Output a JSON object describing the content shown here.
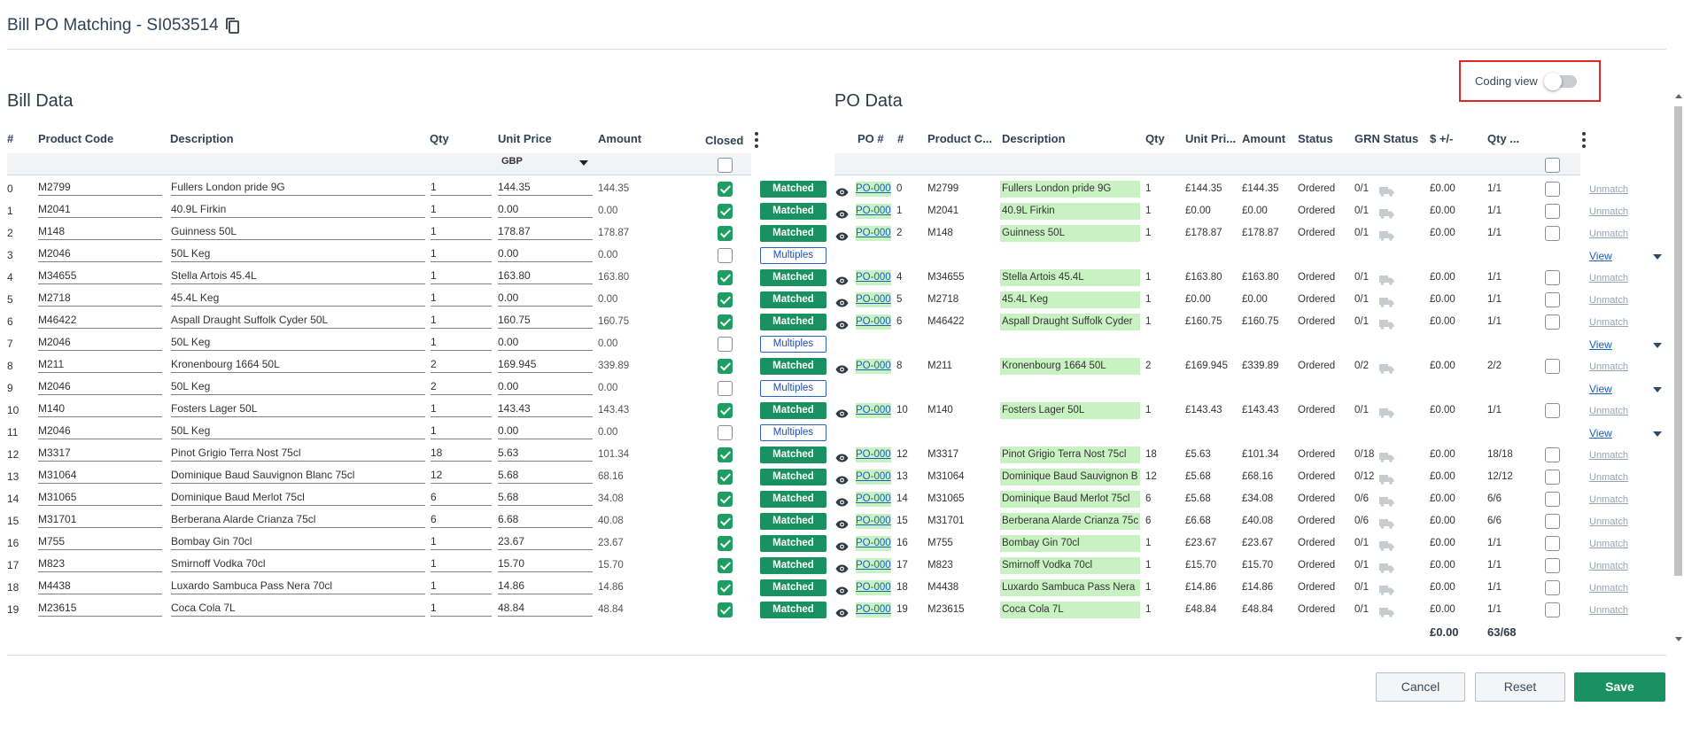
{
  "header": {
    "title": "Bill PO Matching - SI053514"
  },
  "coding_view": {
    "label": "Coding view",
    "on": false
  },
  "bill": {
    "title": "Bill Data",
    "columns": {
      "num": "#",
      "product_code": "Product Code",
      "description": "Description",
      "qty": "Qty",
      "unit_price": "Unit Price",
      "amount": "Amount",
      "closed": "Closed"
    },
    "currency": "GBP",
    "rows": [
      {
        "n": "0",
        "code": "M2799",
        "desc": "Fullers London pride 9G",
        "qty": "1",
        "price": "144.35",
        "amount": "144.35",
        "closed": true,
        "status": "Matched"
      },
      {
        "n": "1",
        "code": "M2041",
        "desc": "40.9L Firkin",
        "qty": "1",
        "price": "0.00",
        "amount": "0.00",
        "closed": true,
        "status": "Matched"
      },
      {
        "n": "2",
        "code": "M148",
        "desc": "Guinness  50L",
        "qty": "1",
        "price": "178.87",
        "amount": "178.87",
        "closed": true,
        "status": "Matched"
      },
      {
        "n": "3",
        "code": "M2046",
        "desc": "50L Keg",
        "qty": "1",
        "price": "0.00",
        "amount": "0.00",
        "closed": false,
        "status": "Multiples"
      },
      {
        "n": "4",
        "code": "M34655",
        "desc": "Stella Artois  45.4L",
        "qty": "1",
        "price": "163.80",
        "amount": "163.80",
        "closed": true,
        "status": "Matched"
      },
      {
        "n": "5",
        "code": "M2718",
        "desc": "45.4L Keg",
        "qty": "1",
        "price": "0.00",
        "amount": "0.00",
        "closed": true,
        "status": "Matched"
      },
      {
        "n": "6",
        "code": "M46422",
        "desc": "Aspall Draught Suffolk Cyder 50L",
        "qty": "1",
        "price": "160.75",
        "amount": "160.75",
        "closed": true,
        "status": "Matched"
      },
      {
        "n": "7",
        "code": "M2046",
        "desc": "50L Keg",
        "qty": "1",
        "price": "0.00",
        "amount": "0.00",
        "closed": false,
        "status": "Multiples"
      },
      {
        "n": "8",
        "code": "M211",
        "desc": "Kronenbourg 1664  50L",
        "qty": "2",
        "price": "169.945",
        "amount": "339.89",
        "closed": true,
        "status": "Matched"
      },
      {
        "n": "9",
        "code": "M2046",
        "desc": "50L Keg",
        "qty": "2",
        "price": "0.00",
        "amount": "0.00",
        "closed": false,
        "status": "Multiples"
      },
      {
        "n": "10",
        "code": "M140",
        "desc": "Fosters Lager  50L",
        "qty": "1",
        "price": "143.43",
        "amount": "143.43",
        "closed": true,
        "status": "Matched"
      },
      {
        "n": "11",
        "code": "M2046",
        "desc": "50L Keg",
        "qty": "1",
        "price": "0.00",
        "amount": "0.00",
        "closed": false,
        "status": "Multiples"
      },
      {
        "n": "12",
        "code": "M3317",
        "desc": "Pinot Grigio Terra Nost  75cl",
        "qty": "18",
        "price": "5.63",
        "amount": "101.34",
        "closed": true,
        "status": "Matched"
      },
      {
        "n": "13",
        "code": "M31064",
        "desc": "Dominique Baud Sauvignon Blanc  75cl",
        "qty": "12",
        "price": "5.68",
        "amount": "68.16",
        "closed": true,
        "status": "Matched"
      },
      {
        "n": "14",
        "code": "M31065",
        "desc": "Dominique Baud Merlot  75cl",
        "qty": "6",
        "price": "5.68",
        "amount": "34.08",
        "closed": true,
        "status": "Matched"
      },
      {
        "n": "15",
        "code": "M31701",
        "desc": "Berberana Alarde Crianza  75cl",
        "qty": "6",
        "price": "6.68",
        "amount": "40.08",
        "closed": true,
        "status": "Matched"
      },
      {
        "n": "16",
        "code": "M755",
        "desc": "Bombay Gin  70cl",
        "qty": "1",
        "price": "23.67",
        "amount": "23.67",
        "closed": true,
        "status": "Matched"
      },
      {
        "n": "17",
        "code": "M823",
        "desc": "Smirnoff Vodka  70cl",
        "qty": "1",
        "price": "15.70",
        "amount": "15.70",
        "closed": true,
        "status": "Matched"
      },
      {
        "n": "18",
        "code": "M4438",
        "desc": "Luxardo Sambuca Pass Nera  70cl",
        "qty": "1",
        "price": "14.86",
        "amount": "14.86",
        "closed": true,
        "status": "Matched"
      },
      {
        "n": "19",
        "code": "M23615",
        "desc": "Coca Cola  7L",
        "qty": "1",
        "price": "48.84",
        "amount": "48.84",
        "closed": true,
        "status": "Matched"
      }
    ]
  },
  "po": {
    "title": "PO Data",
    "columns": {
      "po_num": "PO #",
      "num": "#",
      "product_code": "Product C...",
      "description": "Description",
      "qty": "Qty",
      "unit_price": "Unit Pri...",
      "amount": "Amount",
      "status": "Status",
      "grn_status": "GRN Status",
      "diff": "$ +/-",
      "qty_short": "Qty ..."
    },
    "rows": [
      {
        "po": "PO-000",
        "n": "0",
        "code": "M2799",
        "desc": "Fullers London pride 9G",
        "qty": "1",
        "price": "£144.35",
        "amount": "£144.35",
        "status": "Ordered",
        "grn": "0/1",
        "diff": "£0.00",
        "qtyr": "1/1",
        "action": "Unmatch"
      },
      {
        "po": "PO-000",
        "n": "1",
        "code": "M2041",
        "desc": "40.9L Firkin",
        "qty": "1",
        "price": "£0.00",
        "amount": "£0.00",
        "status": "Ordered",
        "grn": "0/1",
        "diff": "£0.00",
        "qtyr": "1/1",
        "action": "Unmatch"
      },
      {
        "po": "PO-000",
        "n": "2",
        "code": "M148",
        "desc": "Guinness 50L",
        "qty": "1",
        "price": "£178.87",
        "amount": "£178.87",
        "status": "Ordered",
        "grn": "0/1",
        "diff": "£0.00",
        "qtyr": "1/1",
        "action": "Unmatch"
      },
      {
        "view": "View"
      },
      {
        "po": "PO-000",
        "n": "4",
        "code": "M34655",
        "desc": "Stella Artois 45.4L",
        "qty": "1",
        "price": "£163.80",
        "amount": "£163.80",
        "status": "Ordered",
        "grn": "0/1",
        "diff": "£0.00",
        "qtyr": "1/1",
        "action": "Unmatch"
      },
      {
        "po": "PO-000",
        "n": "5",
        "code": "M2718",
        "desc": "45.4L Keg",
        "qty": "1",
        "price": "£0.00",
        "amount": "£0.00",
        "status": "Ordered",
        "grn": "0/1",
        "diff": "£0.00",
        "qtyr": "1/1",
        "action": "Unmatch"
      },
      {
        "po": "PO-000",
        "n": "6",
        "code": "M46422",
        "desc": "Aspall Draught Suffolk Cyder",
        "qty": "1",
        "price": "£160.75",
        "amount": "£160.75",
        "status": "Ordered",
        "grn": "0/1",
        "diff": "£0.00",
        "qtyr": "1/1",
        "action": "Unmatch"
      },
      {
        "view": "View"
      },
      {
        "po": "PO-000",
        "n": "8",
        "code": "M211",
        "desc": "Kronenbourg 1664 50L",
        "qty": "2",
        "price": "£169.945",
        "amount": "£339.89",
        "status": "Ordered",
        "grn": "0/2",
        "diff": "£0.00",
        "qtyr": "2/2",
        "action": "Unmatch"
      },
      {
        "view": "View"
      },
      {
        "po": "PO-000",
        "n": "10",
        "code": "M140",
        "desc": "Fosters Lager 50L",
        "qty": "1",
        "price": "£143.43",
        "amount": "£143.43",
        "status": "Ordered",
        "grn": "0/1",
        "diff": "£0.00",
        "qtyr": "1/1",
        "action": "Unmatch"
      },
      {
        "view": "View"
      },
      {
        "po": "PO-000",
        "n": "12",
        "code": "M3317",
        "desc": "Pinot Grigio Terra Nost 75cl",
        "qty": "18",
        "price": "£5.63",
        "amount": "£101.34",
        "status": "Ordered",
        "grn": "0/18",
        "diff": "£0.00",
        "qtyr": "18/18",
        "action": "Unmatch"
      },
      {
        "po": "PO-000",
        "n": "13",
        "code": "M31064",
        "desc": "Dominique Baud Sauvignon B",
        "qty": "12",
        "price": "£5.68",
        "amount": "£68.16",
        "status": "Ordered",
        "grn": "0/12",
        "diff": "£0.00",
        "qtyr": "12/12",
        "action": "Unmatch"
      },
      {
        "po": "PO-000",
        "n": "14",
        "code": "M31065",
        "desc": "Dominique Baud Merlot 75cl",
        "qty": "6",
        "price": "£5.68",
        "amount": "£34.08",
        "status": "Ordered",
        "grn": "0/6",
        "diff": "£0.00",
        "qtyr": "6/6",
        "action": "Unmatch"
      },
      {
        "po": "PO-000",
        "n": "15",
        "code": "M31701",
        "desc": "Berberana Alarde Crianza 75c",
        "qty": "6",
        "price": "£6.68",
        "amount": "£40.08",
        "status": "Ordered",
        "grn": "0/6",
        "diff": "£0.00",
        "qtyr": "6/6",
        "action": "Unmatch"
      },
      {
        "po": "PO-000",
        "n": "16",
        "code": "M755",
        "desc": "Bombay Gin 70cl",
        "qty": "1",
        "price": "£23.67",
        "amount": "£23.67",
        "status": "Ordered",
        "grn": "0/1",
        "diff": "£0.00",
        "qtyr": "1/1",
        "action": "Unmatch"
      },
      {
        "po": "PO-000",
        "n": "17",
        "code": "M823",
        "desc": "Smirnoff Vodka 70cl",
        "qty": "1",
        "price": "£15.70",
        "amount": "£15.70",
        "status": "Ordered",
        "grn": "0/1",
        "diff": "£0.00",
        "qtyr": "1/1",
        "action": "Unmatch"
      },
      {
        "po": "PO-000",
        "n": "18",
        "code": "M4438",
        "desc": "Luxardo Sambuca Pass Nera",
        "qty": "1",
        "price": "£14.86",
        "amount": "£14.86",
        "status": "Ordered",
        "grn": "0/1",
        "diff": "£0.00",
        "qtyr": "1/1",
        "action": "Unmatch"
      },
      {
        "po": "PO-000",
        "n": "19",
        "code": "M23615",
        "desc": "Coca Cola 7L",
        "qty": "1",
        "price": "£48.84",
        "amount": "£48.84",
        "status": "Ordered",
        "grn": "0/1",
        "diff": "£0.00",
        "qtyr": "1/1",
        "action": "Unmatch"
      }
    ],
    "totals": {
      "diff": "£0.00",
      "qty": "63/68"
    }
  },
  "footer": {
    "cancel": "Cancel",
    "reset": "Reset",
    "save": "Save"
  },
  "colors": {
    "primary": "#1a9160",
    "link": "#1b62b8",
    "highlight": "#c9f2c2",
    "alert_border": "#e0242a"
  },
  "icons": {
    "copy": "copy-icon",
    "eye": "eye-icon",
    "truck": "truck-icon",
    "kebab": "kebab-menu-icon"
  }
}
